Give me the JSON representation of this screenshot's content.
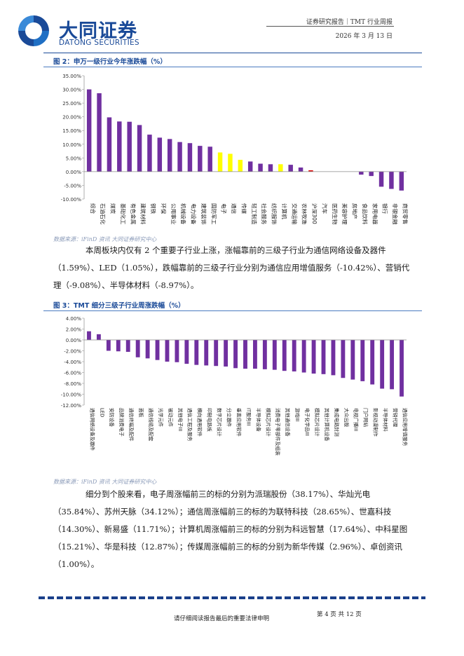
{
  "header": {
    "brand_cn": "大同证券",
    "brand_en": "DATONG SECURITIES",
    "report_type": "证券研究报告｜TMT 行业周报",
    "date": "2026 年 3 月 13 日"
  },
  "figure2": {
    "caption": "图 2：申万一级行业今年涨跌幅（%）",
    "source": "数据来源：iFinD 资讯 大同证券研究中心"
  },
  "figure3": {
    "caption": "图 3：TMT 细分三级子行业周涨跌幅（%）",
    "source": "数据来源：iFinD 资讯 大同证券研究中心"
  },
  "paragraph1": "本周板块内仅有 2 个重要子行业上涨，涨幅靠前的三级子行业为通信网络设备及器件（1.59%）、LED（1.05%），跌幅靠前的三级子行业分别为通信应用增值服务（-10.42%）、营销代理（-9.08%）、半导体材料（-8.97%）。",
  "paragraph2": "细分到个股来看，电子周涨幅前三的标的分别为派瑞股份（38.17%）、华灿光电（35.84%）、苏州天脉（34.12%）；通信周涨幅前三的标的为联特科技（28.65%）、世嘉科技（14.30%）、新易盛（11.71%）；计算机周涨幅前三的标的分别为科远智慧（17.64%）、中科星图（15.21%）、华是科技（12.87%）；传媒周涨幅前三的标的分别为新华传媒（2.96%）、卓创资讯（1.00%）。",
  "footer": {
    "disclaimer": "请仔细阅读报告最后的重要法律申明",
    "page": "第 4 页 共 12 页"
  },
  "chart_data": [
    {
      "type": "bar",
      "ylim": [
        -10,
        35
      ],
      "yticks": [
        "35.00%",
        "30.00%",
        "25.00%",
        "20.00%",
        "15.00%",
        "10.00%",
        "5.00%",
        "0.00%",
        "-5.00%",
        "-10.00%"
      ],
      "grid": false,
      "colors": {
        "purple": "#7030a0",
        "yellow": "#ffff00",
        "red": "#e01010"
      },
      "categories": [
        "综合",
        "石油石化",
        "煤炭",
        "基础化工",
        "有色金属",
        "建筑材料",
        "钢铁",
        "环保",
        "公用事业",
        "机械设备",
        "电力设备",
        "建筑装饰",
        "国防军工",
        "电子",
        "通信",
        "传媒",
        "轻工制造",
        "社会服务",
        "纺织服饰",
        "计算机",
        "交通运输",
        "农林牧渔",
        "沪深300",
        "汽车",
        "医药生物",
        "美容护理",
        "房地产",
        "食品饮料",
        "家用电器",
        "银行",
        "非银金融",
        "商贸零售"
      ],
      "values": [
        30.0,
        28.6,
        19.8,
        18.3,
        18.2,
        17.0,
        13.5,
        12.4,
        11.9,
        10.8,
        10.4,
        9.4,
        9.1,
        7.0,
        6.5,
        4.3,
        3.7,
        2.9,
        2.7,
        2.7,
        2.5,
        1.5,
        0.5,
        0,
        0,
        0,
        0,
        -1.1,
        -1.6,
        -5.5,
        -6.3,
        -6.9
      ],
      "highlight": {
        "电子": "yellow",
        "通信": "yellow",
        "传媒": "yellow",
        "计算机": "yellow",
        "沪深300": "red"
      }
    },
    {
      "type": "bar",
      "ylim": [
        -12,
        4
      ],
      "yticks": [
        "4.00%",
        "2.00%",
        "0.00%",
        "-2.00%",
        "-4.00%",
        "-6.00%",
        "-8.00%",
        "-10.00%",
        "-12.00%"
      ],
      "grid": false,
      "colors": {
        "purple": "#7030a0"
      },
      "categories": [
        "通信网络设备及器件",
        "LED",
        "安防设备",
        "品牌消费电子",
        "通信终端及配件",
        "面板",
        "通信线缆及配套",
        "光学元件",
        "被动元件",
        "其他电子III",
        "通信工程及服务",
        "横向通用软件",
        "印制电路板",
        "数字芯片设计",
        "分立器件",
        "垂直应用软件",
        "IT服务III",
        "半导体设备",
        "模拟芯片设计",
        "消费电子零部件及组装",
        "其他通信设备",
        "游戏III",
        "电子化学品III",
        "模拟芯片设计",
        "其他计算机设备",
        "集成电路封测",
        "大众出版",
        "电视广播III",
        "门户网站",
        "影视动漫制作",
        "半导体材料",
        "营销代理",
        "通信应用增值服务"
      ],
      "values": [
        1.59,
        1.05,
        -2.0,
        -2.1,
        -2.2,
        -3.2,
        -3.4,
        -3.7,
        -4.0,
        -4.1,
        -4.4,
        -4.6,
        -4.7,
        -4.8,
        -4.9,
        -5.2,
        -5.3,
        -5.3,
        -5.4,
        -5.5,
        -5.7,
        -5.8,
        -6.0,
        -6.2,
        -6.3,
        -6.5,
        -7.0,
        -7.3,
        -7.6,
        -8.2,
        -8.97,
        -9.08,
        -10.42
      ]
    }
  ]
}
